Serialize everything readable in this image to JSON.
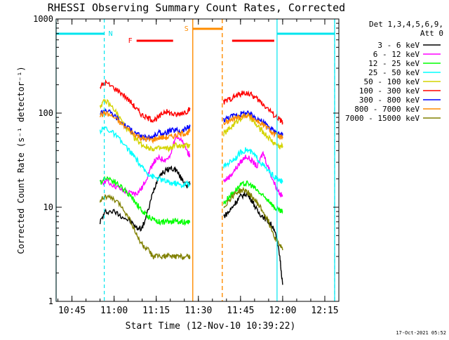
{
  "chart_data": {
    "type": "line",
    "title": "RHESSI Observing Summary Count Rates, Corrected",
    "xlabel": "Start Time (12-Nov-10 10:39:22)",
    "ylabel": "Corrected Count Rate (s⁻¹ detector⁻¹)",
    "x_unit": "time (HH:MM, 12-Nov-10)",
    "xlim": [
      "10:39:22",
      "12:20:00"
    ],
    "ylim": [
      1,
      1000
    ],
    "y_scale": "log",
    "grid": false,
    "legend_position": "top-right, outside plot",
    "legend_header": [
      "Det 1,3,4,5,6,9,",
      "Att 0"
    ],
    "x_ticks": [
      "10:45",
      "11:00",
      "11:15",
      "11:30",
      "11:45",
      "12:00",
      "12:15"
    ],
    "y_ticks": [
      "1",
      "10",
      "100",
      "1000"
    ],
    "footer_timestamp": "17-Oct-2021 05:52",
    "colors": {
      "background": "#ffffff",
      "axes": "#000000",
      "night": "#00e5ee",
      "flare": "#ff0000",
      "saa": "#ff8c00"
    },
    "annotations": [
      {
        "label": "N",
        "type": "night",
        "color": "#00e5ee",
        "intervals": [
          [
            "10:39:22",
            "10:56:30"
          ],
          [
            "11:58:00",
            "12:18:30"
          ]
        ]
      },
      {
        "label": "F",
        "type": "flare",
        "color": "#ff0000",
        "intervals": [
          [
            "11:08:00",
            "11:21:00"
          ],
          [
            "11:42:00",
            "11:57:00"
          ]
        ]
      },
      {
        "label": "S",
        "type": "saa",
        "color": "#ff8c00",
        "intervals": [
          [
            "11:28:00",
            "11:38:30"
          ]
        ]
      }
    ],
    "data_gaps": [
      [
        "10:39:22",
        "10:55:00"
      ],
      [
        "11:28:00",
        "11:39:00"
      ],
      [
        "12:00:30",
        "12:20:00"
      ]
    ],
    "series": [
      {
        "name": "3 - 6 keV",
        "color": "#000000",
        "x": [
          "10:55",
          "10:57",
          "11:00",
          "11:03",
          "11:06",
          "11:08",
          "11:10",
          "11:12",
          "11:14",
          "11:16",
          "11:18",
          "11:20",
          "11:22",
          "11:24",
          "11:26",
          "11:27",
          "11:39",
          "11:41",
          "11:43",
          "11:45",
          "11:47",
          "11:49",
          "11:51",
          "11:53",
          "11:55",
          "11:57",
          "11:59",
          "12:00"
        ],
        "y": [
          7,
          9,
          9,
          8,
          7,
          6,
          6,
          9,
          15,
          22,
          24,
          26,
          25,
          20,
          17,
          18,
          8,
          9,
          11,
          13,
          14,
          12,
          9,
          8,
          7,
          6,
          3,
          1.5
        ]
      },
      {
        "name": "6 - 12 keV",
        "color": "#ff00ff",
        "x": [
          "10:55",
          "10:57",
          "11:00",
          "11:03",
          "11:06",
          "11:08",
          "11:10",
          "11:12",
          "11:14",
          "11:16",
          "11:18",
          "11:20",
          "11:22",
          "11:24",
          "11:26",
          "11:27",
          "11:39",
          "11:41",
          "11:43",
          "11:45",
          "11:47",
          "11:49",
          "11:51",
          "11:53",
          "11:55",
          "11:57",
          "11:59",
          "12:00"
        ],
        "y": [
          18,
          19,
          17,
          15,
          14,
          14,
          16,
          22,
          30,
          33,
          32,
          34,
          60,
          50,
          40,
          35,
          19,
          21,
          25,
          30,
          35,
          31,
          27,
          38,
          26,
          18,
          14,
          13
        ]
      },
      {
        "name": "12 - 25 keV",
        "color": "#00ff00",
        "x": [
          "10:55",
          "10:57",
          "11:00",
          "11:03",
          "11:06",
          "11:08",
          "11:10",
          "11:12",
          "11:14",
          "11:16",
          "11:18",
          "11:20",
          "11:22",
          "11:24",
          "11:26",
          "11:27",
          "11:39",
          "11:41",
          "11:43",
          "11:45",
          "11:47",
          "11:49",
          "11:51",
          "11:53",
          "11:55",
          "11:57",
          "11:59",
          "12:00"
        ],
        "y": [
          18,
          21,
          19,
          16,
          13,
          11,
          9,
          8,
          7.5,
          7,
          7,
          7,
          7.2,
          7,
          7,
          7,
          11,
          13,
          15,
          17,
          18,
          17,
          15,
          13,
          12,
          10,
          9,
          9
        ]
      },
      {
        "name": "25 - 50 keV",
        "color": "#00ffff",
        "x": [
          "10:55",
          "10:57",
          "11:00",
          "11:03",
          "11:06",
          "11:08",
          "11:10",
          "11:12",
          "11:14",
          "11:16",
          "11:18",
          "11:20",
          "11:22",
          "11:24",
          "11:26",
          "11:27",
          "11:39",
          "11:41",
          "11:43",
          "11:45",
          "11:47",
          "11:49",
          "11:51",
          "11:53",
          "11:55",
          "11:57",
          "11:59",
          "12:00"
        ],
        "y": [
          65,
          70,
          60,
          48,
          38,
          32,
          26,
          23,
          21,
          20,
          19,
          18,
          18,
          17,
          18,
          17,
          27,
          30,
          33,
          38,
          41,
          38,
          33,
          28,
          24,
          21,
          19,
          19
        ]
      },
      {
        "name": "50 - 100 keV",
        "color": "#d4d400",
        "x": [
          "10:55",
          "10:57",
          "11:00",
          "11:03",
          "11:06",
          "11:08",
          "11:10",
          "11:12",
          "11:14",
          "11:16",
          "11:18",
          "11:20",
          "11:22",
          "11:24",
          "11:26",
          "11:27",
          "11:39",
          "11:41",
          "11:43",
          "11:45",
          "11:47",
          "11:49",
          "11:51",
          "11:53",
          "11:55",
          "11:57",
          "11:59",
          "12:00"
        ],
        "y": [
          120,
          135,
          110,
          80,
          60,
          52,
          46,
          43,
          42,
          42,
          42,
          42,
          46,
          44,
          45,
          46,
          60,
          68,
          78,
          88,
          95,
          85,
          72,
          63,
          55,
          48,
          44,
          45
        ]
      },
      {
        "name": "100 - 300 keV",
        "color": "#ff0000",
        "x": [
          "10:55",
          "10:57",
          "11:00",
          "11:03",
          "11:06",
          "11:08",
          "11:10",
          "11:12",
          "11:14",
          "11:16",
          "11:18",
          "11:20",
          "11:22",
          "11:24",
          "11:26",
          "11:27",
          "11:39",
          "11:41",
          "11:43",
          "11:45",
          "11:47",
          "11:49",
          "11:51",
          "11:53",
          "11:55",
          "11:57",
          "11:59",
          "12:00"
        ],
        "y": [
          190,
          210,
          185,
          160,
          130,
          110,
          95,
          88,
          85,
          90,
          105,
          100,
          95,
          100,
          105,
          110,
          130,
          140,
          150,
          160,
          165,
          155,
          140,
          125,
          110,
          95,
          85,
          80
        ]
      },
      {
        "name": "300 - 800 keV",
        "color": "#0000ff",
        "x": [
          "10:55",
          "10:57",
          "11:00",
          "11:03",
          "11:06",
          "11:08",
          "11:10",
          "11:12",
          "11:14",
          "11:16",
          "11:18",
          "11:20",
          "11:22",
          "11:24",
          "11:26",
          "11:27",
          "11:39",
          "11:41",
          "11:43",
          "11:45",
          "11:47",
          "11:49",
          "11:51",
          "11:53",
          "11:55",
          "11:57",
          "11:59",
          "12:00"
        ],
        "y": [
          100,
          110,
          95,
          78,
          66,
          60,
          56,
          55,
          56,
          62,
          60,
          65,
          66,
          64,
          70,
          72,
          85,
          90,
          95,
          98,
          100,
          95,
          88,
          80,
          72,
          64,
          60,
          58
        ]
      },
      {
        "name": "800 - 7000 keV",
        "color": "#ff8c00",
        "x": [
          "10:55",
          "10:57",
          "11:00",
          "11:03",
          "11:06",
          "11:08",
          "11:10",
          "11:12",
          "11:14",
          "11:16",
          "11:18",
          "11:20",
          "11:22",
          "11:24",
          "11:26",
          "11:27",
          "11:39",
          "11:41",
          "11:43",
          "11:45",
          "11:47",
          "11:49",
          "11:51",
          "11:53",
          "11:55",
          "11:57",
          "11:59",
          "12:00"
        ],
        "y": [
          95,
          100,
          90,
          75,
          64,
          58,
          54,
          52,
          52,
          55,
          55,
          56,
          58,
          60,
          62,
          64,
          78,
          82,
          88,
          92,
          95,
          90,
          82,
          75,
          68,
          60,
          56,
          54
        ]
      },
      {
        "name": "7000 - 15000 keV",
        "color": "#808000",
        "x": [
          "10:55",
          "10:57",
          "11:00",
          "11:03",
          "11:06",
          "11:08",
          "11:10",
          "11:12",
          "11:14",
          "11:16",
          "11:18",
          "11:20",
          "11:22",
          "11:24",
          "11:26",
          "11:27",
          "11:39",
          "11:41",
          "11:43",
          "11:45",
          "11:47",
          "11:49",
          "11:51",
          "11:53",
          "11:55",
          "11:57",
          "11:59",
          "12:00"
        ],
        "y": [
          12,
          13,
          12,
          10,
          7,
          5,
          4,
          3.5,
          3,
          3,
          3,
          3,
          3,
          3,
          3,
          3,
          10,
          12,
          14,
          15,
          15,
          13,
          11,
          9,
          7,
          5,
          4,
          3.5
        ]
      }
    ]
  }
}
